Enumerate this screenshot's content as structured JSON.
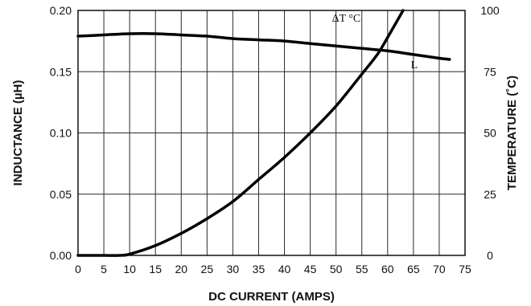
{
  "chart_data": {
    "type": "line",
    "x_axis": {
      "label": "DC CURRENT (AMPS)",
      "range": [
        0,
        75
      ],
      "ticks": [
        "0",
        "5",
        "10",
        "15",
        "20",
        "25",
        "30",
        "35",
        "40",
        "45",
        "50",
        "55",
        "60",
        "65",
        "70",
        "75"
      ]
    },
    "y_axis_left": {
      "label": "INDUCTANCE (µH)",
      "range": [
        0,
        0.2
      ],
      "ticks": [
        "0.00",
        "0.05",
        "0.10",
        "0.15",
        "0.20"
      ]
    },
    "y_axis_right": {
      "label": "TEMPERATURE (˚C)",
      "range": [
        0,
        100
      ],
      "ticks": [
        "0",
        "25",
        "50",
        "75",
        "100"
      ]
    },
    "grid": true,
    "series": [
      {
        "name": "L",
        "axis": "left",
        "x": [
          0,
          5,
          10,
          15,
          20,
          25,
          30,
          35,
          40,
          45,
          50,
          55,
          60,
          65,
          70,
          72
        ],
        "y": [
          0.179,
          0.18,
          0.181,
          0.181,
          0.18,
          0.179,
          0.177,
          0.176,
          0.175,
          0.173,
          0.171,
          0.169,
          0.167,
          0.164,
          0.161,
          0.16
        ]
      },
      {
        "name": "ΔT °C",
        "axis": "right",
        "x": [
          0,
          5,
          8,
          10,
          15,
          20,
          25,
          30,
          35,
          40,
          45,
          50,
          55,
          58,
          60,
          63
        ],
        "y": [
          0,
          0,
          0,
          0.5,
          4,
          9,
          15,
          22,
          31,
          40,
          50,
          61,
          74,
          82,
          89,
          100
        ]
      }
    ]
  }
}
